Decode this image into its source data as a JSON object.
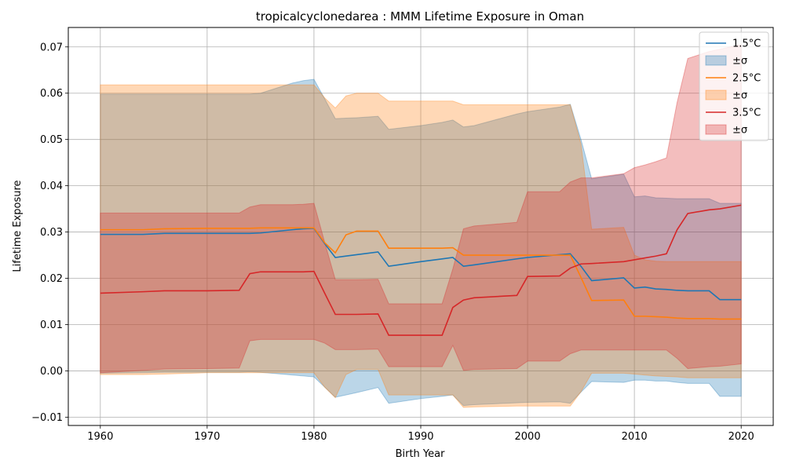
{
  "chart_data": {
    "type": "line",
    "title": "tropicalcyclonedarea : MMM Lifetime Exposure in Oman",
    "xlabel": "Birth Year",
    "ylabel": "Lifetime Exposure",
    "xlim": [
      1957,
      2023
    ],
    "ylim": [
      -0.0118,
      0.0742
    ],
    "xticks": [
      1960,
      1970,
      1980,
      1990,
      2000,
      2010,
      2020
    ],
    "xtick_labels": [
      "1960",
      "1970",
      "1980",
      "1990",
      "2000",
      "2010",
      "2020"
    ],
    "yticks": [
      -0.01,
      0.0,
      0.01,
      0.02,
      0.03,
      0.04,
      0.05,
      0.06,
      0.07
    ],
    "ytick_labels": [
      "−0.01",
      "0.00",
      "0.01",
      "0.02",
      "0.03",
      "0.04",
      "0.05",
      "0.06",
      "0.07"
    ],
    "grid": true,
    "legend_position": "top-right",
    "x": [
      1960,
      1964,
      1966,
      1970,
      1973,
      1974,
      1975,
      1978,
      1979,
      1980,
      1981,
      1982,
      1983,
      1984,
      1986,
      1987,
      1990,
      1992,
      1993,
      1994,
      1995,
      1999,
      2000,
      2003,
      2004,
      2005,
      2006,
      2009,
      2010,
      2011,
      2012,
      2013,
      2014,
      2015,
      2017,
      2018,
      2020
    ],
    "series": [
      {
        "name": "1.5°C",
        "band_label": "±σ",
        "color": "#1f77b4",
        "mean": [
          0.0295,
          0.0295,
          0.0297,
          0.0297,
          0.0297,
          0.0297,
          0.0298,
          0.0305,
          0.0307,
          0.0308,
          0.0275,
          0.0245,
          0.0248,
          0.0251,
          0.0257,
          0.0226,
          0.0236,
          0.0242,
          0.0245,
          0.0226,
          0.0229,
          0.0242,
          0.0245,
          0.0251,
          0.0253,
          0.0226,
          0.0195,
          0.0201,
          0.0179,
          0.0181,
          0.0177,
          0.0176,
          0.0174,
          0.0173,
          0.0173,
          0.0154,
          0.0154
        ],
        "upper": [
          0.0598,
          0.0598,
          0.0598,
          0.0598,
          0.0598,
          0.0598,
          0.06,
          0.0622,
          0.0627,
          0.063,
          0.0588,
          0.0545,
          0.0546,
          0.0547,
          0.055,
          0.0522,
          0.053,
          0.0537,
          0.0542,
          0.0527,
          0.053,
          0.0555,
          0.056,
          0.057,
          0.0576,
          0.05,
          0.0415,
          0.0425,
          0.0376,
          0.0378,
          0.0374,
          0.0373,
          0.0372,
          0.0372,
          0.0372,
          0.0362,
          0.0362
        ],
        "lower": [
          -0.0005,
          -0.0004,
          -0.0003,
          -0.0003,
          -0.0003,
          -0.0002,
          -0.0003,
          -0.0009,
          -0.0011,
          -0.0013,
          -0.0035,
          -0.0057,
          -0.0052,
          -0.0047,
          -0.0036,
          -0.007,
          -0.006,
          -0.0055,
          -0.0052,
          -0.0075,
          -0.0073,
          -0.0069,
          -0.0068,
          -0.0067,
          -0.007,
          -0.0046,
          -0.0023,
          -0.0025,
          -0.002,
          -0.002,
          -0.0022,
          -0.0022,
          -0.0025,
          -0.0027,
          -0.0027,
          -0.0055,
          -0.0055
        ]
      },
      {
        "name": "2.5°C",
        "band_label": "±σ",
        "color": "#ff7f0e",
        "mean": [
          0.0305,
          0.0305,
          0.0307,
          0.0308,
          0.0308,
          0.0308,
          0.0309,
          0.0309,
          0.0309,
          0.0309,
          0.0277,
          0.0255,
          0.0294,
          0.0302,
          0.0302,
          0.0265,
          0.0265,
          0.0265,
          0.0266,
          0.025,
          0.025,
          0.025,
          0.025,
          0.025,
          0.025,
          0.0202,
          0.0152,
          0.0153,
          0.0118,
          0.0118,
          0.0117,
          0.0116,
          0.0114,
          0.0113,
          0.0113,
          0.0112,
          0.0112
        ],
        "upper": [
          0.0618,
          0.0618,
          0.0618,
          0.0618,
          0.0618,
          0.0618,
          0.0618,
          0.0618,
          0.0618,
          0.0618,
          0.059,
          0.0568,
          0.0594,
          0.06,
          0.06,
          0.0583,
          0.0583,
          0.0583,
          0.0583,
          0.0575,
          0.0575,
          0.0575,
          0.0575,
          0.0575,
          0.0575,
          0.049,
          0.0306,
          0.031,
          0.025,
          0.024,
          0.0237,
          0.0236,
          0.0236,
          0.0236,
          0.0236,
          0.0236,
          0.0236
        ],
        "lower": [
          -0.0008,
          -0.0008,
          -0.0007,
          -0.0004,
          -0.0004,
          -0.0004,
          -0.0004,
          -0.0004,
          -0.0004,
          -0.0004,
          -0.0035,
          -0.0058,
          -0.0008,
          0.0003,
          0.0003,
          -0.0052,
          -0.0052,
          -0.0052,
          -0.0052,
          -0.0079,
          -0.0078,
          -0.0076,
          -0.0076,
          -0.0076,
          -0.0076,
          -0.0045,
          -0.0005,
          -0.0005,
          -0.0007,
          -0.0009,
          -0.0011,
          -0.0012,
          -0.0013,
          -0.0015,
          -0.0015,
          -0.0015,
          -0.0015
        ]
      },
      {
        "name": "3.5°C",
        "band_label": "±σ",
        "color": "#d62728",
        "mean": [
          0.0168,
          0.0171,
          0.0173,
          0.0173,
          0.0174,
          0.021,
          0.0214,
          0.0214,
          0.0214,
          0.0215,
          0.0168,
          0.0122,
          0.0122,
          0.0122,
          0.0123,
          0.0077,
          0.0077,
          0.0077,
          0.0137,
          0.0153,
          0.0158,
          0.0163,
          0.0204,
          0.0205,
          0.0222,
          0.0231,
          0.0232,
          0.0236,
          0.024,
          0.0244,
          0.0248,
          0.0253,
          0.0305,
          0.034,
          0.0348,
          0.035,
          0.0358
        ],
        "upper": [
          0.0341,
          0.0341,
          0.0341,
          0.0341,
          0.0341,
          0.0354,
          0.0359,
          0.0359,
          0.036,
          0.0362,
          0.0278,
          0.0197,
          0.0197,
          0.0197,
          0.0198,
          0.0145,
          0.0145,
          0.0145,
          0.022,
          0.0307,
          0.0313,
          0.0321,
          0.0387,
          0.0387,
          0.0408,
          0.0417,
          0.0417,
          0.0426,
          0.0439,
          0.0445,
          0.0452,
          0.046,
          0.058,
          0.0675,
          0.069,
          0.0695,
          0.0705
        ],
        "lower": [
          -0.0004,
          0.0001,
          0.0004,
          0.0005,
          0.0006,
          0.0065,
          0.0068,
          0.0068,
          0.0068,
          0.0068,
          0.006,
          0.0046,
          0.0046,
          0.0046,
          0.0047,
          0.0009,
          0.0009,
          0.0009,
          0.0055,
          0.0001,
          0.0003,
          0.0005,
          0.0021,
          0.0021,
          0.0037,
          0.0045,
          0.0045,
          0.0045,
          0.0045,
          0.0045,
          0.0045,
          0.0045,
          0.0027,
          0.0005,
          0.0009,
          0.001,
          0.0015
        ]
      }
    ]
  }
}
